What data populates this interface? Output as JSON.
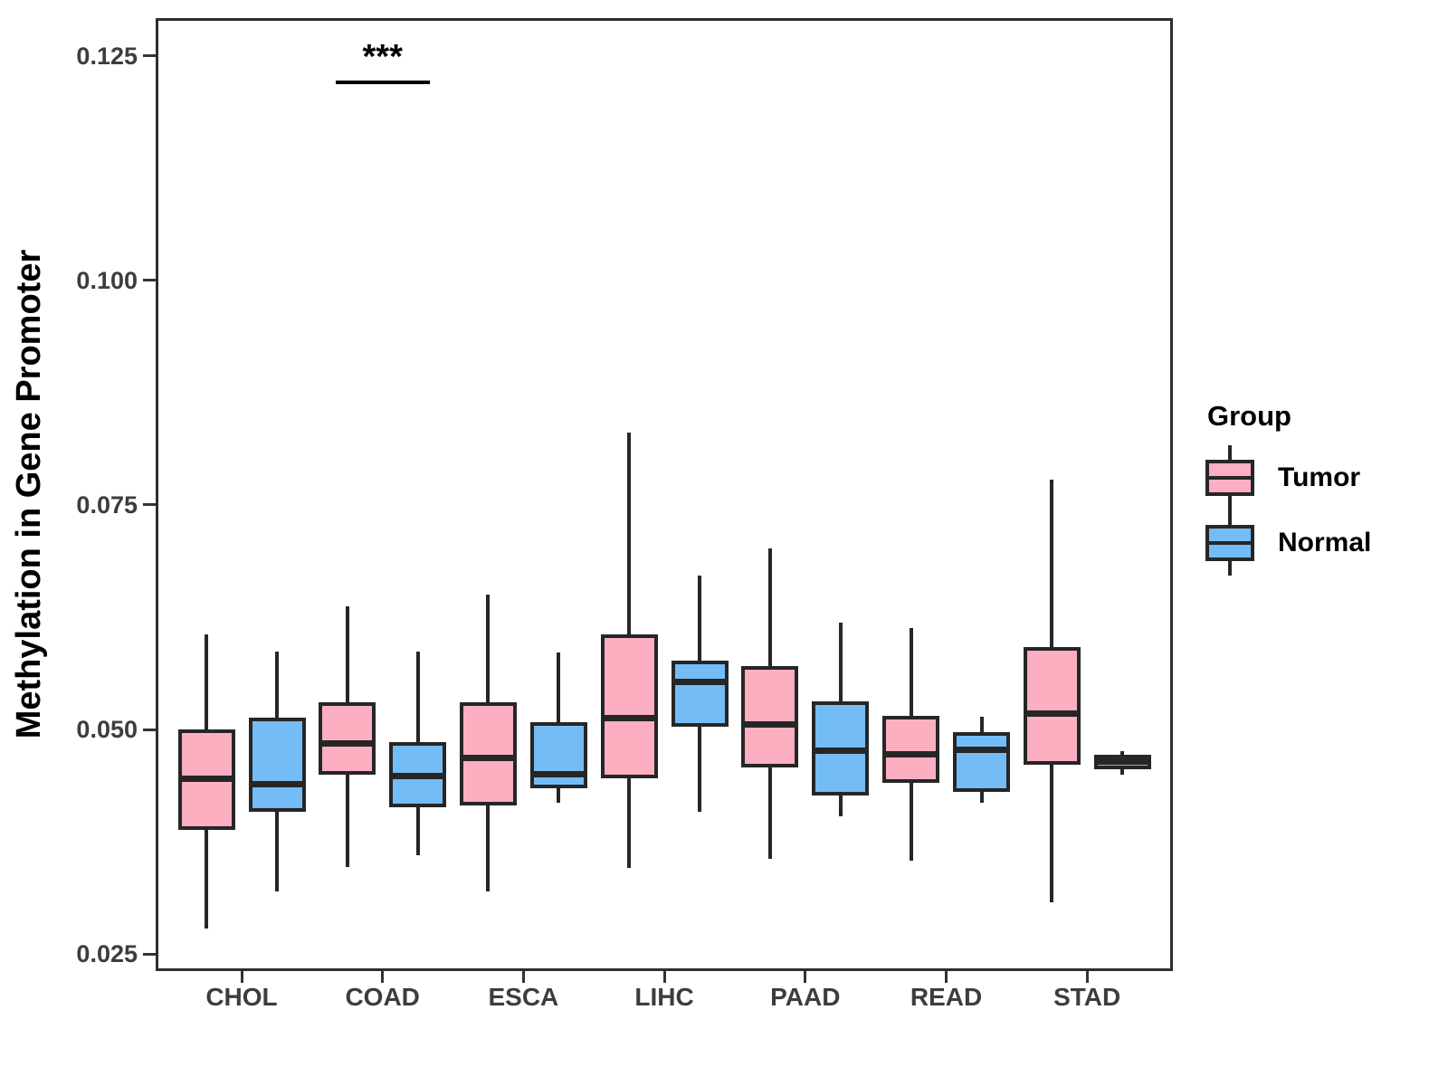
{
  "chart_data": {
    "type": "grouped_boxplot",
    "title": "",
    "xlabel": "",
    "ylabel": "Methylation in Gene Promoter",
    "categories": [
      "CHOL",
      "COAD",
      "ESCA",
      "LIHC",
      "PAAD",
      "READ",
      "STAD"
    ],
    "ytick_values": [
      0.025,
      0.05,
      0.075,
      0.1,
      0.125
    ],
    "ytick_labels": [
      "0.025",
      "0.050",
      "0.075",
      "0.100",
      "0.125"
    ],
    "ylim": [
      0.0234,
      0.1289
    ],
    "grid": "off",
    "series": [
      {
        "name": "Tumor",
        "color": "#FBAFC1",
        "boxes": [
          {
            "category": "CHOL",
            "whisker_low": 0.028,
            "q1": 0.039,
            "median": 0.0445,
            "q3": 0.0498,
            "whisker_high": 0.0604
          },
          {
            "category": "COAD",
            "whisker_low": 0.0349,
            "q1": 0.0452,
            "median": 0.0484,
            "q3": 0.0528,
            "whisker_high": 0.0635
          },
          {
            "category": "ESCA",
            "whisker_low": 0.0322,
            "q1": 0.0417,
            "median": 0.0468,
            "q3": 0.0528,
            "whisker_high": 0.0648
          },
          {
            "category": "LIHC",
            "whisker_low": 0.0348,
            "q1": 0.0448,
            "median": 0.0513,
            "q3": 0.0604,
            "whisker_high": 0.0829
          },
          {
            "category": "PAAD",
            "whisker_low": 0.0358,
            "q1": 0.046,
            "median": 0.0506,
            "q3": 0.0569,
            "whisker_high": 0.07
          },
          {
            "category": "READ",
            "whisker_low": 0.0356,
            "q1": 0.0443,
            "median": 0.0472,
            "q3": 0.0513,
            "whisker_high": 0.0611
          },
          {
            "category": "STAD",
            "whisker_low": 0.031,
            "q1": 0.0463,
            "median": 0.0518,
            "q3": 0.059,
            "whisker_high": 0.0776
          }
        ]
      },
      {
        "name": "Normal",
        "color": "#74BCF5",
        "boxes": [
          {
            "category": "CHOL",
            "whisker_low": 0.0322,
            "q1": 0.041,
            "median": 0.0439,
            "q3": 0.0511,
            "whisker_high": 0.0585
          },
          {
            "category": "COAD",
            "whisker_low": 0.0362,
            "q1": 0.0415,
            "median": 0.0448,
            "q3": 0.0484,
            "whisker_high": 0.0585
          },
          {
            "category": "ESCA",
            "whisker_low": 0.042,
            "q1": 0.0437,
            "median": 0.045,
            "q3": 0.0506,
            "whisker_high": 0.0584
          },
          {
            "category": "LIHC",
            "whisker_low": 0.041,
            "q1": 0.0505,
            "median": 0.0553,
            "q3": 0.0575,
            "whisker_high": 0.0669
          },
          {
            "category": "PAAD",
            "whisker_low": 0.0405,
            "q1": 0.0428,
            "median": 0.0476,
            "q3": 0.0529,
            "whisker_high": 0.0617
          },
          {
            "category": "READ",
            "whisker_low": 0.042,
            "q1": 0.0432,
            "median": 0.0477,
            "q3": 0.0495,
            "whisker_high": 0.0512
          },
          {
            "category": "STAD",
            "whisker_low": 0.0452,
            "q1": 0.0458,
            "median": 0.0464,
            "q3": 0.047,
            "whisker_high": 0.0474
          }
        ]
      }
    ],
    "annotation": {
      "label": "***",
      "category": "COAD",
      "line_y": 0.122
    },
    "legend": {
      "title": "Group",
      "position": "right"
    },
    "style": {
      "box_border_color": "#262626",
      "panel_border_color": "#2e2e2e",
      "tick_text_color": "#3d3d3d",
      "tumor_color": "#FBAFC1",
      "normal_color": "#74BCF5"
    }
  }
}
